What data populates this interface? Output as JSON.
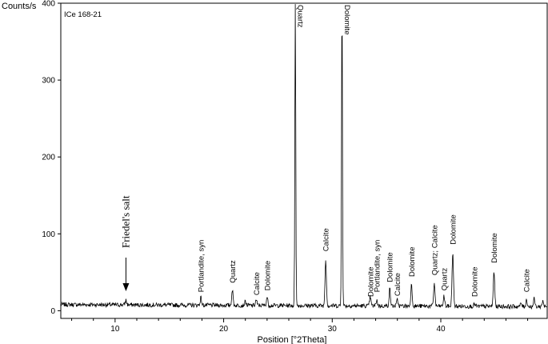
{
  "chart_data": {
    "type": "line",
    "title": "",
    "sample_label": "ICe 168-21",
    "xlabel": "Position [°2Theta]",
    "ylabel": "Counts/s",
    "xlim": [
      5,
      49.8
    ],
    "ylim": [
      -10,
      400
    ],
    "xticks": [
      10,
      20,
      30,
      40
    ],
    "yticks": [
      0,
      100,
      200,
      300,
      400
    ],
    "grid": false,
    "line_color": "#000000",
    "peaks": [
      {
        "x": 11.0,
        "y": 12
      },
      {
        "x": 17.9,
        "y": 16
      },
      {
        "x": 20.8,
        "y": 26
      },
      {
        "x": 22.0,
        "y": 11
      },
      {
        "x": 23.0,
        "y": 13
      },
      {
        "x": 24.0,
        "y": 17
      },
      {
        "x": 26.6,
        "y": 400
      },
      {
        "x": 29.4,
        "y": 67
      },
      {
        "x": 30.9,
        "y": 400
      },
      {
        "x": 33.5,
        "y": 18
      },
      {
        "x": 34.1,
        "y": 14
      },
      {
        "x": 35.3,
        "y": 28
      },
      {
        "x": 36.0,
        "y": 14
      },
      {
        "x": 37.3,
        "y": 34
      },
      {
        "x": 39.4,
        "y": 36
      },
      {
        "x": 40.3,
        "y": 19
      },
      {
        "x": 41.1,
        "y": 77
      },
      {
        "x": 43.1,
        "y": 9
      },
      {
        "x": 44.9,
        "y": 52
      },
      {
        "x": 47.4,
        "y": 10
      },
      {
        "x": 47.9,
        "y": 15
      },
      {
        "x": 48.6,
        "y": 16
      },
      {
        "x": 49.4,
        "y": 14
      }
    ],
    "peak_labels": [
      {
        "text": "Portlandite, syn",
        "x": 17.9,
        "y": 22
      },
      {
        "text": "Quartz",
        "x": 20.8,
        "y": 34
      },
      {
        "text": "Calcite",
        "x": 23.0,
        "y": 18
      },
      {
        "text": "Dolomite",
        "x": 24.0,
        "y": 24
      },
      {
        "text": "Quartz",
        "x": 26.6,
        "y": 400
      },
      {
        "text": "Calcite",
        "x": 29.4,
        "y": 75
      },
      {
        "text": "Dolomite",
        "x": 30.9,
        "y": 400
      },
      {
        "text": "Dolomite",
        "x": 33.5,
        "y": 16
      },
      {
        "text": "Portlandite, syn",
        "x": 34.1,
        "y": 22
      },
      {
        "text": "Dolomite",
        "x": 35.3,
        "y": 35
      },
      {
        "text": "Calcite",
        "x": 36.0,
        "y": 17
      },
      {
        "text": "Dolomite",
        "x": 37.3,
        "y": 42
      },
      {
        "text": "Quartz; Calcite",
        "x": 39.4,
        "y": 44
      },
      {
        "text": "Quartz",
        "x": 40.3,
        "y": 24
      },
      {
        "text": "Dolomite",
        "x": 41.1,
        "y": 84
      },
      {
        "text": "Dolomite",
        "x": 43.1,
        "y": 16
      },
      {
        "text": "Dolomite",
        "x": 44.9,
        "y": 60
      },
      {
        "text": "Calcite",
        "x": 47.9,
        "y": 22
      }
    ],
    "annotation": {
      "text": "Friedel's salt",
      "x": 11.0
    }
  }
}
